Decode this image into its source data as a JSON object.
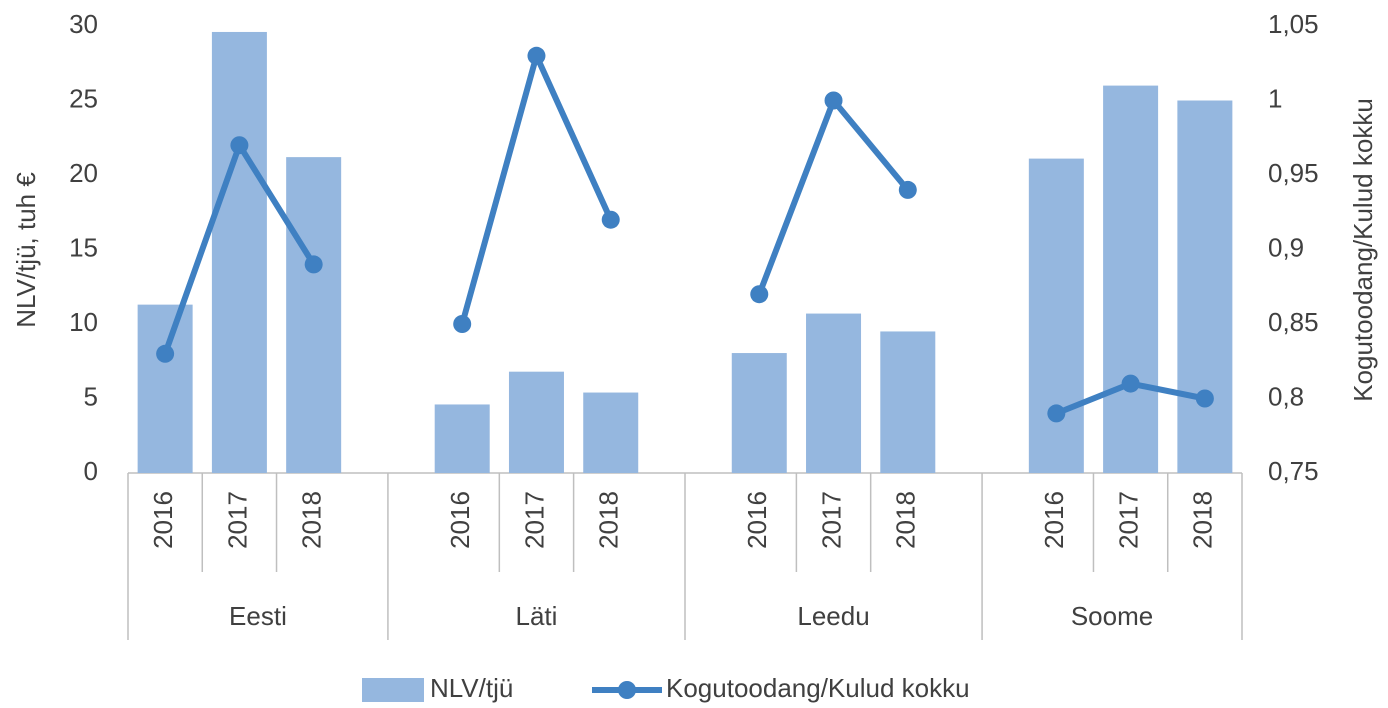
{
  "chart_data": {
    "type": "bar-line",
    "y_label": "NLV/tjü, tuh €",
    "y2_label": "Kogutoodang/Kulud kokku",
    "groups": [
      {
        "name": "Eesti",
        "categories": [
          "2016",
          "2017",
          "2018"
        ]
      },
      {
        "name": "Läti",
        "categories": [
          "2016",
          "2017",
          "2018"
        ]
      },
      {
        "name": "Leedu",
        "categories": [
          "2016",
          "2017",
          "2018"
        ]
      },
      {
        "name": "Soome",
        "categories": [
          "2016",
          "2017",
          "2018"
        ]
      }
    ],
    "series": [
      {
        "name": "NLV/tjü",
        "type": "bar",
        "color": "#95b7df",
        "values": [
          [
            11.3,
            29.6,
            21.2
          ],
          [
            4.6,
            6.8,
            5.4
          ],
          [
            8.05,
            10.7,
            9.5
          ],
          [
            21.1,
            26.0,
            25.0
          ]
        ]
      },
      {
        "name": "Kogutoodang/Kulud kokku",
        "type": "line",
        "axis": "y2",
        "color": "#3f80c2",
        "values": [
          [
            0.83,
            0.97,
            0.89
          ],
          [
            0.85,
            1.03,
            0.92
          ],
          [
            0.87,
            1.0,
            0.94
          ],
          [
            0.79,
            0.81,
            0.8
          ]
        ]
      }
    ],
    "ylim": [
      0,
      30
    ],
    "yticks": [
      0,
      5,
      10,
      15,
      20,
      25,
      30
    ],
    "y2lim": [
      0.75,
      1.05
    ],
    "y2ticks": [
      {
        "value": 0.75,
        "label": "0,75"
      },
      {
        "value": 0.8,
        "label": "0,8"
      },
      {
        "value": 0.85,
        "label": "0,85"
      },
      {
        "value": 0.9,
        "label": "0,9"
      },
      {
        "value": 0.95,
        "label": "0,95"
      },
      1,
      {
        "value": 1.05,
        "label": "1,05"
      }
    ],
    "legend": "bottom"
  }
}
